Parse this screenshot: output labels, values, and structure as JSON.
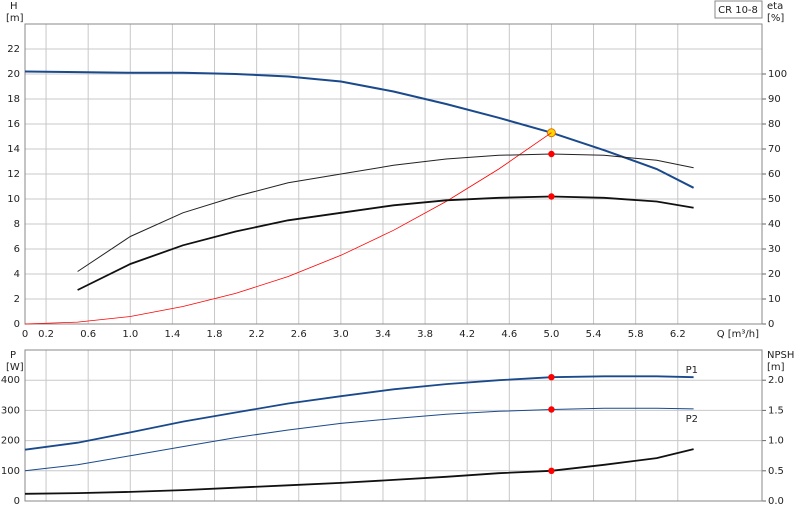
{
  "chart_data": [
    {
      "type": "line",
      "title": "CR 10-8",
      "xlabel": "Q [m³/h]",
      "ylabel": [
        "H",
        "[m]"
      ],
      "y2label": [
        "eta",
        "[%]"
      ],
      "x": [
        0,
        0.5,
        1.0,
        1.5,
        2.0,
        2.5,
        3.0,
        3.5,
        4.0,
        4.5,
        5.0,
        5.5,
        6.0,
        6.35
      ],
      "xlim": [
        0,
        7
      ],
      "xticks": [
        0,
        0.2,
        0.6,
        {
          "value": 1.0,
          "label": "1.0"
        },
        1.4,
        1.8,
        2.2,
        2.6,
        {
          "value": 3.0,
          "label": "3.0"
        },
        3.4,
        3.8,
        4.2,
        4.6,
        {
          "value": 5.0,
          "label": "5.0"
        },
        5.4,
        5.8,
        6.2
      ],
      "ylim": [
        0,
        24
      ],
      "yticks": [
        0,
        2,
        4,
        6,
        8,
        10,
        12,
        14,
        16,
        18,
        20,
        22
      ],
      "y2lim": [
        0,
        120
      ],
      "y2ticks": [
        0,
        10,
        20,
        30,
        40,
        50,
        60,
        70,
        80,
        90,
        100
      ],
      "grid": true,
      "duty_point": {
        "x": 5.0
      },
      "series": [
        {
          "color": "#1a4a8c",
          "width": 2,
          "axis": "y",
          "duty_color": "#ffd700",
          "values": [
            20.2,
            20.15,
            20.1,
            20.1,
            20.0,
            19.8,
            19.4,
            18.6,
            17.6,
            16.5,
            15.3,
            13.9,
            12.4,
            10.9
          ]
        },
        {
          "color": "#ff0000",
          "width": 0.8,
          "axis": "y",
          "values": [
            0,
            0.15,
            0.6,
            1.4,
            2.45,
            3.8,
            5.5,
            7.5,
            9.8,
            12.4,
            15.3,
            null,
            null,
            null
          ]
        },
        {
          "color": "#222222",
          "width": 1,
          "axis": "y2",
          "duty_color": "#ff0000",
          "values": [
            null,
            21,
            35,
            44.5,
            51,
            56.5,
            60,
            63.5,
            66,
            67.5,
            68,
            67.5,
            65.5,
            62.5
          ]
        },
        {
          "color": "#111111",
          "width": 1.8,
          "axis": "y2",
          "duty_color": "#ff0000",
          "values": [
            null,
            13.6,
            24,
            31.5,
            37,
            41.5,
            44.5,
            47.5,
            49.5,
            50.5,
            51,
            50.5,
            49,
            46.5
          ]
        }
      ]
    },
    {
      "type": "line",
      "ylabel": [
        "P",
        "[W]"
      ],
      "y2label": [
        "NPSH",
        "[m]"
      ],
      "x": [
        0,
        0.5,
        1.0,
        1.5,
        2.0,
        2.5,
        3.0,
        3.5,
        4.0,
        4.5,
        5.0,
        5.5,
        6.0,
        6.35
      ],
      "xlim": [
        0,
        7
      ],
      "ylim": [
        0,
        500
      ],
      "yticks": [
        0,
        100,
        200,
        300,
        400
      ],
      "y2lim": [
        0,
        2.5
      ],
      "y2ticks": [
        {
          "value": 0,
          "label": "0.0"
        },
        0.5,
        {
          "value": 1,
          "label": "1.0"
        },
        1.5,
        {
          "value": 2,
          "label": "2.0"
        }
      ],
      "grid": true,
      "duty_point": {
        "x": 5.0
      },
      "series": [
        {
          "name": "P1",
          "color": "#1a4a8c",
          "width": 1.8,
          "axis": "y",
          "duty_color": "#ff0000",
          "values": [
            170,
            193,
            227,
            263,
            293,
            323,
            347,
            370,
            387,
            400,
            410,
            413,
            413,
            410
          ]
        },
        {
          "name": "P2",
          "color": "#1a4a8c",
          "width": 1,
          "axis": "y",
          "duty_color": "#ff0000",
          "values": [
            100,
            120,
            150,
            180,
            210,
            235,
            257,
            273,
            287,
            297,
            303,
            307,
            307,
            305
          ]
        },
        {
          "color": "#111111",
          "width": 1.8,
          "axis": "y2",
          "duty_color": "#ff0000",
          "values": [
            0.12,
            0.13,
            0.15,
            0.18,
            0.22,
            0.26,
            0.3,
            0.35,
            0.4,
            0.46,
            0.5,
            0.6,
            0.71,
            0.86
          ]
        }
      ]
    }
  ]
}
